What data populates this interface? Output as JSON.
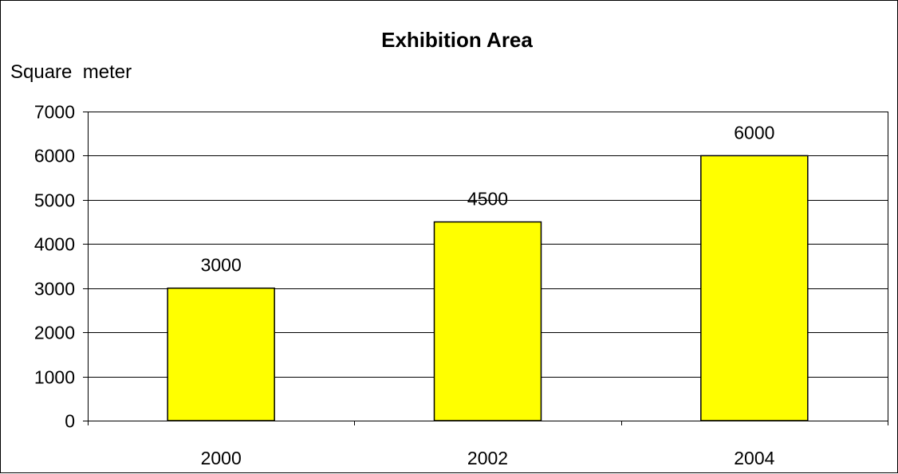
{
  "chart_data": {
    "type": "bar",
    "title": "Exhibition Area",
    "ylabel": "Square  meter",
    "xlabel": "",
    "categories": [
      "2000",
      "2002",
      "2004"
    ],
    "values": [
      3000,
      4500,
      6000
    ],
    "data_labels": [
      "3000",
      "4500",
      "6000"
    ],
    "ylim": [
      0,
      7000
    ],
    "yticks": [
      0,
      1000,
      2000,
      3000,
      4000,
      5000,
      6000,
      7000
    ],
    "ytick_labels": [
      "0",
      "1000",
      "2000",
      "3000",
      "4000",
      "5000",
      "6000",
      "7000"
    ],
    "grid": true,
    "legend": "none",
    "bar_color": "#FFFF00",
    "bar_edge_color": "#000000",
    "grid_color": "#000000"
  }
}
